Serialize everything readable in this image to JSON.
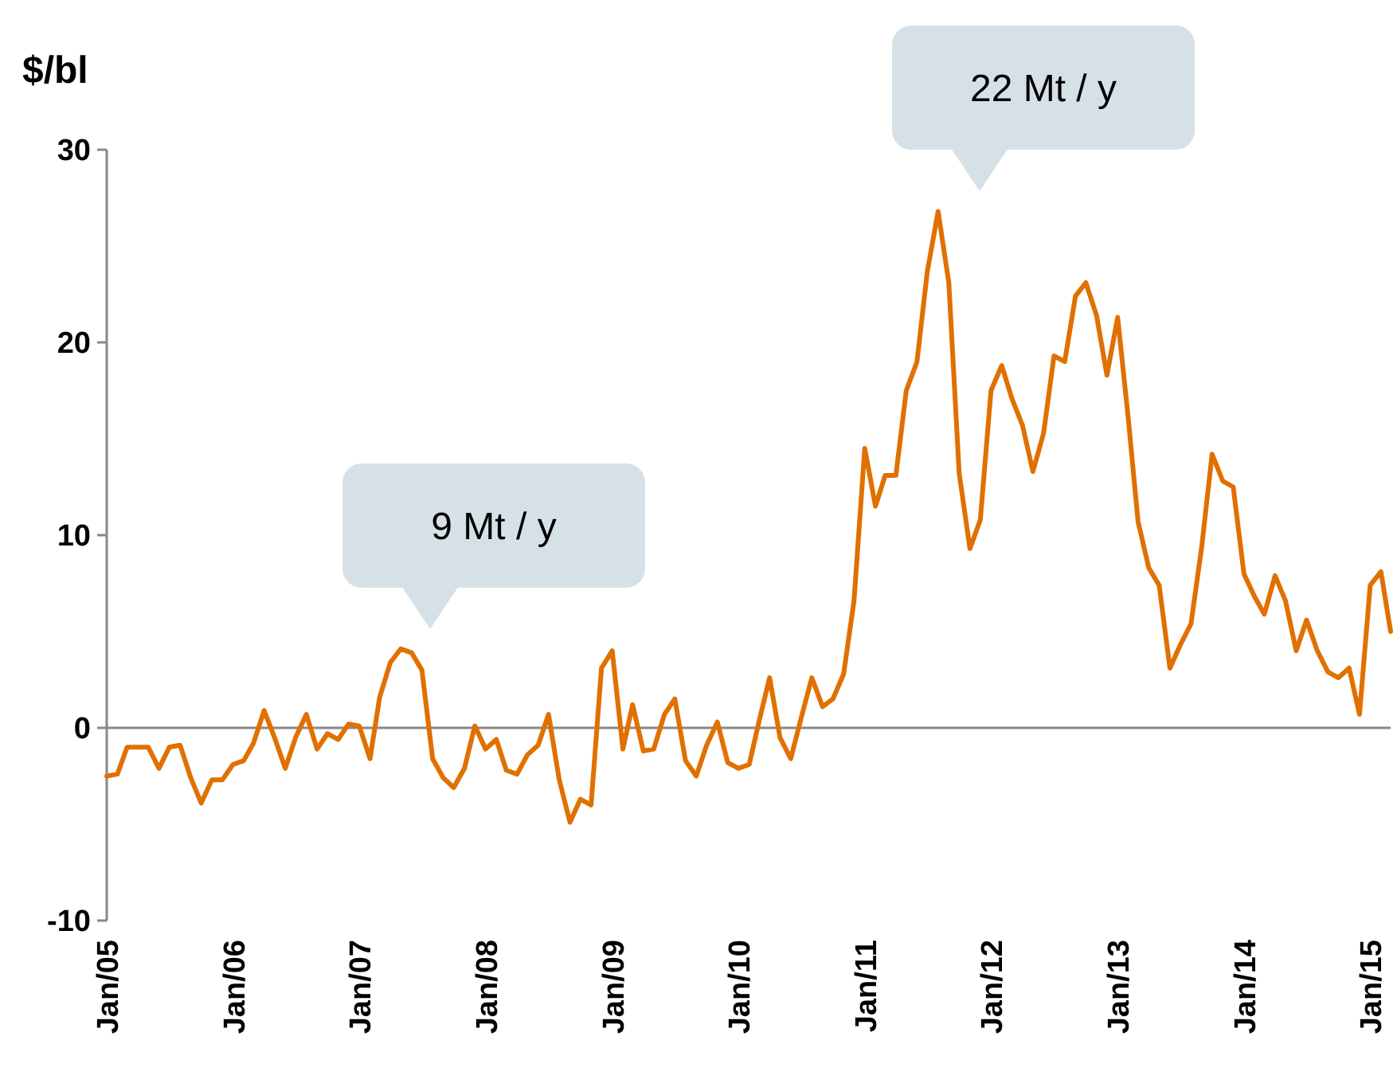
{
  "chart_data": {
    "type": "line",
    "ylabel": "$/bl",
    "x": [
      "2005-01",
      "2005-02",
      "2005-03",
      "2005-04",
      "2005-05",
      "2005-06",
      "2005-07",
      "2005-08",
      "2005-09",
      "2005-10",
      "2005-11",
      "2005-12",
      "2006-01",
      "2006-02",
      "2006-03",
      "2006-04",
      "2006-05",
      "2006-06",
      "2006-07",
      "2006-08",
      "2006-09",
      "2006-10",
      "2006-11",
      "2006-12",
      "2007-01",
      "2007-02",
      "2007-03",
      "2007-04",
      "2007-05",
      "2007-06",
      "2007-07",
      "2007-08",
      "2007-09",
      "2007-10",
      "2007-11",
      "2007-12",
      "2008-01",
      "2008-02",
      "2008-03",
      "2008-04",
      "2008-05",
      "2008-06",
      "2008-07",
      "2008-08",
      "2008-09",
      "2008-10",
      "2008-11",
      "2008-12",
      "2009-01",
      "2009-02",
      "2009-03",
      "2009-04",
      "2009-05",
      "2009-06",
      "2009-07",
      "2009-08",
      "2009-09",
      "2009-10",
      "2009-11",
      "2009-12",
      "2010-01",
      "2010-02",
      "2010-03",
      "2010-04",
      "2010-05",
      "2010-06",
      "2010-07",
      "2010-08",
      "2010-09",
      "2010-10",
      "2010-11",
      "2010-12",
      "2011-01",
      "2011-02",
      "2011-03",
      "2011-04",
      "2011-05",
      "2011-06",
      "2011-07",
      "2011-08",
      "2011-09",
      "2011-10",
      "2011-11",
      "2011-12",
      "2012-01",
      "2012-02",
      "2012-03",
      "2012-04",
      "2012-05",
      "2012-06",
      "2012-07",
      "2012-08",
      "2012-09",
      "2012-10",
      "2012-11",
      "2012-12",
      "2013-01",
      "2013-02",
      "2013-03",
      "2013-04",
      "2013-05",
      "2013-06",
      "2013-07",
      "2013-08",
      "2013-09",
      "2013-10",
      "2013-11",
      "2013-12",
      "2014-01",
      "2014-02",
      "2014-03",
      "2014-04",
      "2014-05",
      "2014-06",
      "2014-07",
      "2014-08",
      "2014-09",
      "2014-10",
      "2014-11",
      "2014-12",
      "2015-01",
      "2015-02",
      "2015-03"
    ],
    "series": [
      {
        "color": "#e07000",
        "values": [
          -2.5,
          -2.4,
          -1.0,
          -1.0,
          -1.0,
          -2.1,
          -1.0,
          -0.9,
          -2.6,
          -3.9,
          -2.7,
          -2.7,
          -1.9,
          -1.7,
          -0.8,
          0.9,
          -0.5,
          -2.1,
          -0.5,
          0.7,
          -1.1,
          -0.3,
          -0.6,
          0.2,
          0.1,
          -1.6,
          1.6,
          3.4,
          4.1,
          3.9,
          3.0,
          -1.6,
          -2.6,
          -3.1,
          -2.1,
          0.1,
          -1.1,
          -0.6,
          -2.2,
          -2.4,
          -1.4,
          -0.9,
          0.7,
          -2.7,
          -4.9,
          -3.7,
          -4.0,
          3.1,
          4.0,
          -1.1,
          1.2,
          -1.2,
          -1.1,
          0.7,
          1.5,
          -1.7,
          -2.5,
          -0.9,
          0.3,
          -1.8,
          -2.1,
          -1.9,
          0.3,
          2.6,
          -0.5,
          -1.6,
          0.5,
          2.6,
          1.1,
          1.5,
          2.8,
          6.6,
          14.5,
          11.5,
          13.1,
          13.1,
          17.5,
          19.0,
          23.7,
          26.8,
          23.1,
          13.2,
          9.3,
          10.8,
          17.5,
          18.8,
          17.1,
          15.7,
          13.3,
          15.3,
          19.3,
          19.0,
          22.4,
          23.1,
          21.4,
          18.3,
          21.3,
          16.0,
          10.7,
          8.3,
          7.4,
          3.1,
          4.3,
          5.4,
          9.4,
          14.2,
          12.8,
          12.5,
          8.0,
          6.8,
          5.9,
          7.9,
          6.6,
          4.0,
          5.6,
          4.0,
          2.9,
          2.6,
          3.1,
          0.7,
          7.4,
          8.1,
          5.0
        ]
      }
    ],
    "xlim": [
      "2005-01",
      "2015-03"
    ],
    "xticks": [
      {
        "value": "2005-01",
        "label": "Jan/05"
      },
      {
        "value": "2006-01",
        "label": "Jan/06"
      },
      {
        "value": "2007-01",
        "label": "Jan/07"
      },
      {
        "value": "2008-01",
        "label": "Jan/08"
      },
      {
        "value": "2009-01",
        "label": "Jan/09"
      },
      {
        "value": "2010-01",
        "label": "Jan/10"
      },
      {
        "value": "2011-01",
        "label": "Jan/11"
      },
      {
        "value": "2012-01",
        "label": "Jan/12"
      },
      {
        "value": "2013-01",
        "label": "Jan/13"
      },
      {
        "value": "2014-01",
        "label": "Jan/14"
      },
      {
        "value": "2015-01",
        "label": "Jan/15"
      }
    ],
    "ylim": [
      -10,
      30
    ],
    "yticks": [
      -10,
      0,
      10,
      20,
      30
    ],
    "annotations": [
      "9 Mt / y",
      "22 Mt / y"
    ],
    "marker": "none",
    "line_style": "solid"
  }
}
